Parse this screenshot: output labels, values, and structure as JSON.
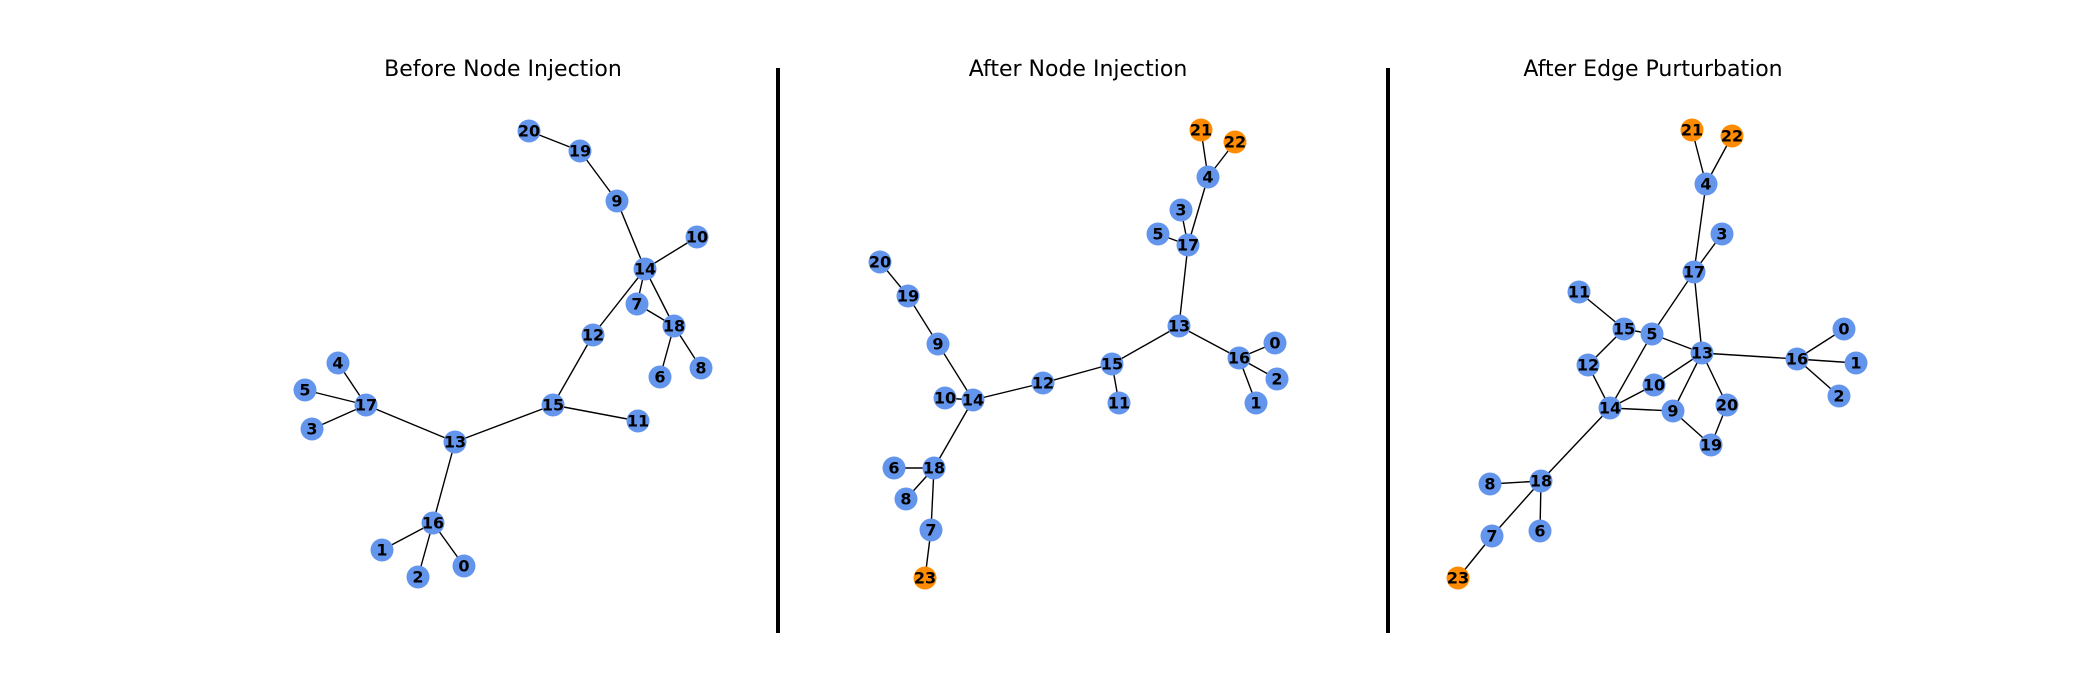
{
  "colors": {
    "original_node": "#6495ED",
    "injected_node": "#FF8C00",
    "edge": "#000000"
  },
  "panels": [
    {
      "title": "Before Node Injection",
      "nodes": [
        "0",
        "1",
        "2",
        "3",
        "4",
        "5",
        "6",
        "7",
        "8",
        "9",
        "10",
        "11",
        "12",
        "13",
        "14",
        "15",
        "16",
        "17",
        "18",
        "19",
        "20"
      ],
      "injected": [],
      "edges": [
        [
          "20",
          "19"
        ],
        [
          "19",
          "9"
        ],
        [
          "9",
          "14"
        ],
        [
          "14",
          "10"
        ],
        [
          "14",
          "12"
        ],
        [
          "14",
          "7"
        ],
        [
          "14",
          "18"
        ],
        [
          "7",
          "18"
        ],
        [
          "18",
          "6"
        ],
        [
          "18",
          "8"
        ],
        [
          "12",
          "15"
        ],
        [
          "15",
          "11"
        ],
        [
          "15",
          "13"
        ],
        [
          "13",
          "17"
        ],
        [
          "17",
          "4"
        ],
        [
          "17",
          "5"
        ],
        [
          "17",
          "3"
        ],
        [
          "13",
          "16"
        ],
        [
          "16",
          "1"
        ],
        [
          "16",
          "2"
        ],
        [
          "16",
          "0"
        ]
      ]
    },
    {
      "title": "After Node Injection",
      "nodes": [
        "0",
        "1",
        "2",
        "3",
        "4",
        "5",
        "6",
        "7",
        "8",
        "9",
        "10",
        "11",
        "12",
        "13",
        "14",
        "15",
        "16",
        "17",
        "18",
        "19",
        "20",
        "21",
        "22",
        "23"
      ],
      "injected": [
        "21",
        "22",
        "23"
      ],
      "edges": [
        [
          "21",
          "4"
        ],
        [
          "22",
          "4"
        ],
        [
          "4",
          "17"
        ],
        [
          "3",
          "17"
        ],
        [
          "5",
          "17"
        ],
        [
          "17",
          "13"
        ],
        [
          "13",
          "15"
        ],
        [
          "13",
          "16"
        ],
        [
          "16",
          "0"
        ],
        [
          "16",
          "2"
        ],
        [
          "16",
          "1"
        ],
        [
          "15",
          "11"
        ],
        [
          "15",
          "12"
        ],
        [
          "12",
          "14"
        ],
        [
          "14",
          "10"
        ],
        [
          "14",
          "9"
        ],
        [
          "9",
          "19"
        ],
        [
          "19",
          "20"
        ],
        [
          "14",
          "18"
        ],
        [
          "18",
          "6"
        ],
        [
          "18",
          "8"
        ],
        [
          "18",
          "7"
        ],
        [
          "7",
          "23"
        ]
      ]
    },
    {
      "title": "After Edge Purturbation",
      "nodes": [
        "0",
        "1",
        "2",
        "3",
        "4",
        "5",
        "6",
        "7",
        "8",
        "9",
        "10",
        "11",
        "12",
        "13",
        "14",
        "15",
        "16",
        "17",
        "18",
        "19",
        "20",
        "21",
        "22",
        "23"
      ],
      "injected": [
        "21",
        "22",
        "23"
      ],
      "edges": [
        [
          "21",
          "4"
        ],
        [
          "22",
          "4"
        ],
        [
          "4",
          "17"
        ],
        [
          "3",
          "17"
        ],
        [
          "17",
          "5"
        ],
        [
          "17",
          "13"
        ],
        [
          "11",
          "15"
        ],
        [
          "15",
          "5"
        ],
        [
          "15",
          "12"
        ],
        [
          "12",
          "14"
        ],
        [
          "5",
          "13"
        ],
        [
          "5",
          "14"
        ],
        [
          "13",
          "16"
        ],
        [
          "16",
          "0"
        ],
        [
          "16",
          "1"
        ],
        [
          "16",
          "2"
        ],
        [
          "13",
          "10"
        ],
        [
          "13",
          "9"
        ],
        [
          "13",
          "20"
        ],
        [
          "10",
          "14"
        ],
        [
          "14",
          "9"
        ],
        [
          "9",
          "19"
        ],
        [
          "20",
          "19"
        ],
        [
          "14",
          "18"
        ],
        [
          "18",
          "8"
        ],
        [
          "18",
          "6"
        ],
        [
          "18",
          "7"
        ],
        [
          "7",
          "23"
        ]
      ]
    }
  ]
}
